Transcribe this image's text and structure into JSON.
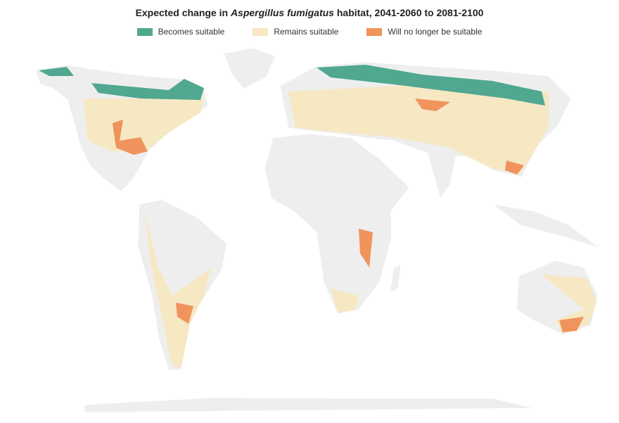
{
  "header": {
    "title": {
      "before": "Expected change in ",
      "species": "Aspergillus fumigatus",
      "after": " habitat, 2041-2060 to 2081-2100"
    }
  },
  "legend": {
    "items": [
      {
        "label": "Becomes suitable",
        "color": "#4fa88f"
      },
      {
        "label": "Remains suitable",
        "color": "#f6e8c3"
      },
      {
        "label": "Will no longer be suitable",
        "color": "#f0935d"
      }
    ]
  }
}
